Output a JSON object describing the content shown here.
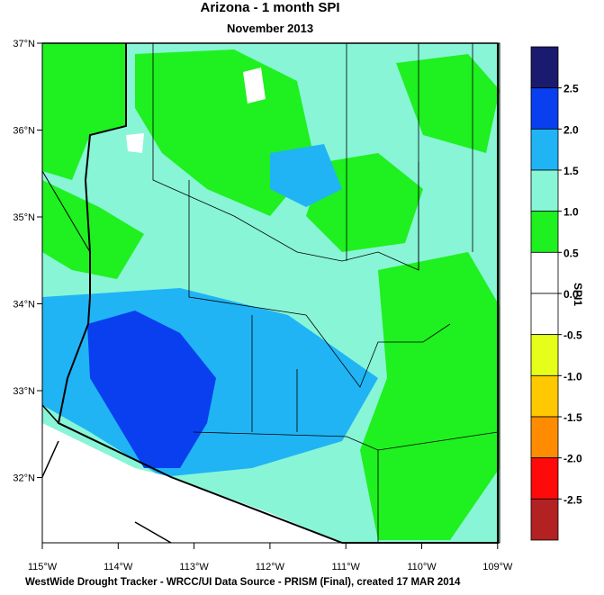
{
  "map": {
    "title": "Arizona - 1 month SPI",
    "subtitle": "November 2013",
    "lat_ticks": [
      {
        "value": 37,
        "label": "37°N"
      },
      {
        "value": 36,
        "label": "36°N"
      },
      {
        "value": 35,
        "label": "35°N"
      },
      {
        "value": 34,
        "label": "34°N"
      },
      {
        "value": 33,
        "label": "33°N"
      },
      {
        "value": 32,
        "label": "32°N"
      }
    ],
    "lon_ticks": [
      {
        "value": -115,
        "label": "115°W"
      },
      {
        "value": -114,
        "label": "114°W"
      },
      {
        "value": -113,
        "label": "113°W"
      },
      {
        "value": -112,
        "label": "112°W"
      },
      {
        "value": -111,
        "label": "111°W"
      },
      {
        "value": -110,
        "label": "110°W"
      },
      {
        "value": -109,
        "label": "109°W"
      }
    ],
    "colorbar": {
      "label": "SPI1",
      "ticks": [
        {
          "value": 2.5,
          "label": "2.5"
        },
        {
          "value": 2,
          "label": "2.0"
        },
        {
          "value": 1.5,
          "label": "1.5"
        },
        {
          "value": 1,
          "label": "1.0"
        },
        {
          "value": 0.5,
          "label": "0.5"
        },
        {
          "value": 0,
          "label": "0.0"
        },
        {
          "value": -0.5,
          "label": "-0.5"
        },
        {
          "value": -1,
          "label": "-1.0"
        },
        {
          "value": -1.5,
          "label": "-1.5"
        },
        {
          "value": -2,
          "label": "-2.0"
        },
        {
          "value": -2.5,
          "label": "-2.5"
        }
      ],
      "colors": [
        "#1a1a6e",
        "#0a3ff0",
        "#20b4f5",
        "#88f5d6",
        "#1ff01f",
        "#ffffff",
        "#ffffff",
        "#e6ff1a",
        "#ffc800",
        "#ff8c00",
        "#ff0a0a",
        "#b22222"
      ]
    },
    "footer": "WestWide Drought Tracker - WRCC/UI  Data Source - PRISM (Final), created 17 MAR 2014"
  }
}
